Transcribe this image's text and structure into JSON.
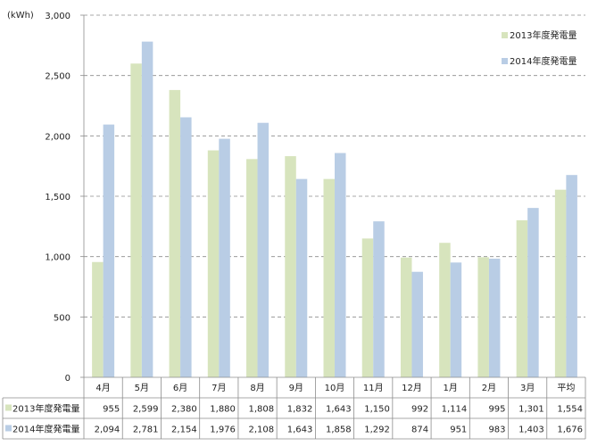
{
  "chart_data": {
    "type": "bar",
    "ylabel": "(kWh)",
    "ylim": [
      0,
      3000
    ],
    "yticks": [
      0,
      500,
      1000,
      1500,
      2000,
      2500,
      3000
    ],
    "ytick_labels": [
      "0",
      "500",
      "1,000",
      "1,500",
      "2,000",
      "2,500",
      "3,000"
    ],
    "grid": "horizontal-dashed",
    "legend_position": "top-right",
    "categories": [
      "4月",
      "5月",
      "6月",
      "7月",
      "8月",
      "9月",
      "10月",
      "11月",
      "12月",
      "1月",
      "2月",
      "3月",
      "平均"
    ],
    "series": [
      {
        "name": "2013年度発電量",
        "color": "#d7e4bd",
        "values": [
          955,
          2599,
          2380,
          1880,
          1808,
          1832,
          1643,
          1150,
          992,
          1114,
          995,
          1301,
          1554
        ],
        "labels": [
          "955",
          "2,599",
          "2,380",
          "1,880",
          "1,808",
          "1,832",
          "1,643",
          "1,150",
          "992",
          "1,114",
          "995",
          "1,301",
          "1,554"
        ]
      },
      {
        "name": "2014年度発電量",
        "color": "#b9cde5",
        "values": [
          2094,
          2781,
          2154,
          1976,
          2108,
          1643,
          1858,
          1292,
          874,
          951,
          983,
          1403,
          1676
        ],
        "labels": [
          "2,094",
          "2,781",
          "2,154",
          "1,976",
          "2,108",
          "1,643",
          "1,858",
          "1,292",
          "874",
          "951",
          "983",
          "1,403",
          "1,676"
        ]
      }
    ]
  }
}
